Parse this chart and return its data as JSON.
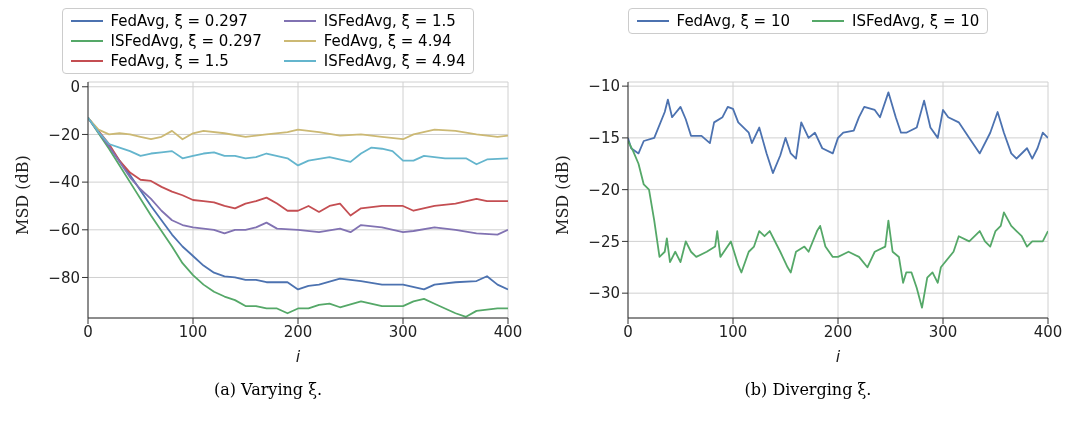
{
  "chart_data": [
    {
      "type": "line",
      "xlabel": "i",
      "ylabel": "MSD (dB)",
      "xlim": [
        0,
        400
      ],
      "xticks": [
        0,
        100,
        200,
        300,
        400
      ],
      "ylim": [
        -97,
        2
      ],
      "yticks": [
        -80,
        -60,
        -40,
        -20,
        0
      ],
      "grid": true,
      "legend": "top",
      "annotations": [
        "(a) Varying ξ."
      ],
      "series": [
        {
          "name": "FedAvg, ξ = 0.297",
          "color": "#4c72b0",
          "x": [
            0,
            20,
            40,
            60,
            80,
            90,
            100,
            110,
            120,
            130,
            140,
            150,
            160,
            170,
            180,
            190,
            200,
            210,
            220,
            240,
            250,
            260,
            280,
            300,
            320,
            330,
            350,
            370,
            380,
            390,
            400
          ],
          "values": [
            -13,
            -25,
            -37,
            -50,
            -62,
            -67,
            -71,
            -75,
            -78,
            -79.5,
            -80,
            -81,
            -81,
            -82,
            -82,
            -82,
            -85,
            -83.5,
            -83,
            -80.5,
            -81,
            -81.5,
            -83,
            -83,
            -85,
            -83,
            -82,
            -81.5,
            -79.5,
            -83,
            -85
          ]
        },
        {
          "name": "ISFedAvg, ξ = 0.297",
          "color": "#55a868",
          "x": [
            0,
            20,
            40,
            60,
            80,
            90,
            100,
            110,
            120,
            130,
            140,
            150,
            160,
            170,
            180,
            190,
            200,
            210,
            220,
            230,
            240,
            260,
            280,
            300,
            310,
            320,
            330,
            340,
            350,
            360,
            370,
            390,
            400
          ],
          "values": [
            -13,
            -26,
            -40,
            -54,
            -67,
            -74,
            -79,
            -83,
            -86,
            -88,
            -89.5,
            -92,
            -92,
            -93,
            -93,
            -95,
            -93,
            -93,
            -91.5,
            -91,
            -92.5,
            -90,
            -92,
            -92,
            -90,
            -89,
            -91,
            -93,
            -95,
            -96.5,
            -94,
            -93,
            -93
          ]
        },
        {
          "name": "FedAvg, ξ = 1.5",
          "color": "#c44e52",
          "x": [
            0,
            20,
            30,
            40,
            50,
            60,
            70,
            80,
            90,
            100,
            110,
            120,
            130,
            140,
            150,
            160,
            170,
            180,
            190,
            200,
            210,
            220,
            230,
            240,
            250,
            260,
            280,
            300,
            310,
            330,
            350,
            370,
            380,
            400
          ],
          "values": [
            -13,
            -24,
            -31,
            -36,
            -39,
            -39.5,
            -42,
            -44,
            -45.5,
            -47.5,
            -48,
            -48.5,
            -50,
            -51,
            -49,
            -48,
            -46.5,
            -49,
            -52,
            -52,
            -50,
            -52.5,
            -50,
            -49,
            -54,
            -51,
            -50,
            -50,
            -52,
            -50,
            -49,
            -47,
            -48,
            -48
          ]
        },
        {
          "name": "ISFedAvg, ξ = 1.5",
          "color": "#8172b2",
          "x": [
            0,
            20,
            40,
            50,
            60,
            70,
            80,
            90,
            100,
            110,
            120,
            130,
            140,
            150,
            160,
            170,
            180,
            200,
            220,
            240,
            250,
            260,
            280,
            300,
            310,
            330,
            350,
            370,
            390,
            400
          ],
          "values": [
            -13,
            -25,
            -38,
            -43,
            -47,
            -52,
            -56,
            -58,
            -59,
            -59.5,
            -60,
            -61.5,
            -60,
            -60,
            -59,
            -57,
            -59.5,
            -60,
            -61,
            -59.5,
            -61,
            -58,
            -59,
            -61,
            -60.5,
            -59,
            -60,
            -61.5,
            -62,
            -60
          ]
        },
        {
          "name": "FedAvg, ξ = 4.94",
          "color": "#ccb974",
          "x": [
            0,
            10,
            20,
            30,
            40,
            50,
            60,
            70,
            80,
            90,
            100,
            110,
            130,
            150,
            170,
            190,
            200,
            220,
            240,
            260,
            280,
            300,
            310,
            330,
            350,
            370,
            390,
            400
          ],
          "values": [
            -13,
            -18,
            -20,
            -19.5,
            -20,
            -21,
            -22,
            -21,
            -18.5,
            -22,
            -19.5,
            -18.5,
            -19.5,
            -21,
            -20,
            -19,
            -18,
            -19,
            -20.5,
            -20,
            -21,
            -22,
            -20,
            -18,
            -18.5,
            -20,
            -21,
            -20.5
          ]
        },
        {
          "name": "ISFedAvg, ξ = 4.94",
          "color": "#64b5cd",
          "x": [
            0,
            10,
            20,
            30,
            40,
            50,
            60,
            70,
            80,
            90,
            100,
            110,
            120,
            130,
            140,
            150,
            160,
            170,
            190,
            200,
            210,
            230,
            250,
            260,
            270,
            280,
            290,
            300,
            310,
            320,
            340,
            360,
            370,
            380,
            400
          ],
          "values": [
            -13,
            -19,
            -24,
            -25.5,
            -27,
            -29,
            -28,
            -27.5,
            -27,
            -30,
            -29,
            -28,
            -27.5,
            -29,
            -29,
            -30,
            -29.5,
            -28,
            -30,
            -33,
            -31,
            -29.5,
            -31.5,
            -28,
            -25.5,
            -26,
            -27,
            -31,
            -31,
            -29,
            -30,
            -30,
            -32.5,
            -30.5,
            -30
          ]
        }
      ]
    },
    {
      "type": "line",
      "xlabel": "i",
      "ylabel": "MSD (dB)",
      "xlim": [
        0,
        400
      ],
      "xticks": [
        0,
        100,
        200,
        300,
        400
      ],
      "ylim": [
        -32.4,
        -9.6
      ],
      "yticks": [
        -30,
        -25,
        -20,
        -15,
        -10
      ],
      "grid": true,
      "legend": "top",
      "annotations": [
        "(b) Diverging ξ."
      ],
      "series": [
        {
          "name": "FedAvg, ξ = 10",
          "color": "#4c72b0",
          "x": [
            0,
            3,
            10,
            15,
            25,
            35,
            38,
            42,
            50,
            55,
            60,
            70,
            78,
            82,
            90,
            95,
            100,
            105,
            115,
            118,
            125,
            132,
            138,
            145,
            150,
            155,
            160,
            165,
            172,
            178,
            185,
            195,
            200,
            205,
            215,
            220,
            225,
            235,
            240,
            248,
            255,
            260,
            265,
            275,
            282,
            288,
            295,
            300,
            305,
            315,
            325,
            335,
            345,
            352,
            358,
            365,
            370,
            380,
            385,
            390,
            395,
            400
          ],
          "values": [
            -15,
            -16,
            -16.5,
            -15.3,
            -15,
            -12.5,
            -11.3,
            -13,
            -12,
            -13.2,
            -14.8,
            -14.8,
            -15.5,
            -13.5,
            -13,
            -12,
            -12.2,
            -13.5,
            -14.5,
            -15.5,
            -14,
            -16.5,
            -18.4,
            -16.7,
            -15,
            -16.5,
            -17,
            -13.5,
            -15,
            -14.5,
            -16,
            -16.5,
            -15,
            -14.5,
            -14.3,
            -13,
            -12,
            -12.3,
            -13,
            -10.6,
            -13,
            -14.5,
            -14.5,
            -14,
            -11.4,
            -14,
            -15,
            -12.3,
            -13,
            -13.5,
            -15,
            -16.5,
            -14.5,
            -12.5,
            -14.5,
            -16.5,
            -17,
            -16,
            -17,
            -16,
            -14.5,
            -15
          ]
        },
        {
          "name": "ISFedAvg, ξ = 10",
          "color": "#55a868",
          "x": [
            0,
            5,
            10,
            15,
            20,
            25,
            30,
            35,
            37,
            40,
            45,
            50,
            55,
            60,
            65,
            75,
            83,
            85,
            88,
            98,
            105,
            108,
            115,
            120,
            125,
            130,
            135,
            145,
            152,
            155,
            160,
            168,
            172,
            180,
            183,
            188,
            195,
            200,
            210,
            220,
            228,
            235,
            245,
            248,
            252,
            258,
            262,
            265,
            270,
            275,
            280,
            285,
            290,
            295,
            298,
            310,
            315,
            325,
            335,
            340,
            345,
            350,
            355,
            358,
            365,
            370,
            375,
            380,
            385,
            395,
            400
          ],
          "values": [
            -15.3,
            -16.3,
            -17.5,
            -19.5,
            -20,
            -23,
            -26.5,
            -26,
            -24.7,
            -27,
            -26,
            -27,
            -25,
            -26,
            -26.5,
            -26,
            -25.5,
            -24,
            -26.5,
            -25,
            -27.3,
            -28,
            -26,
            -25.5,
            -24,
            -24.5,
            -24,
            -26,
            -27.5,
            -28,
            -26,
            -25.5,
            -26,
            -24,
            -23.5,
            -25.5,
            -26.5,
            -26.5,
            -26,
            -26.5,
            -27.5,
            -26,
            -25.5,
            -23,
            -26,
            -26.5,
            -29,
            -28,
            -28,
            -29.5,
            -31.4,
            -28.5,
            -28,
            -29,
            -27.5,
            -26,
            -24.5,
            -25,
            -24,
            -25,
            -25.5,
            -24,
            -23.5,
            -22.2,
            -23.5,
            -24,
            -24.5,
            -25.5,
            -25,
            -25,
            -24
          ]
        }
      ]
    }
  ]
}
